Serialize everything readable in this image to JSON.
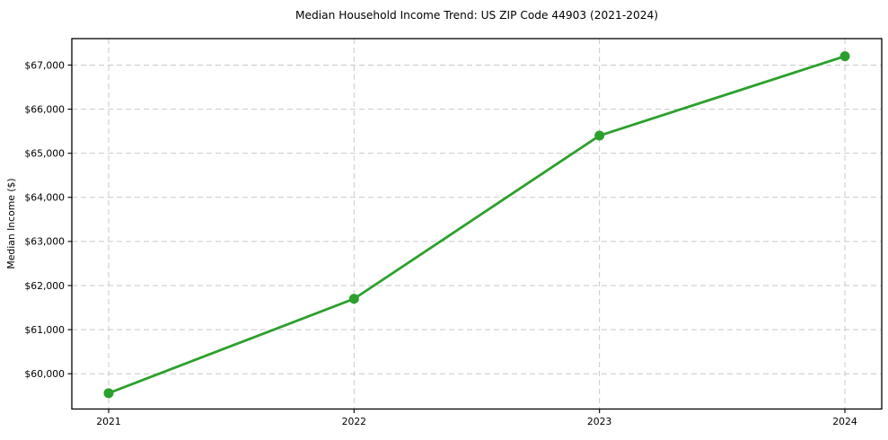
{
  "figure": {
    "background_color": "#ffffff"
  },
  "chart_data": {
    "type": "line",
    "title": "Median Household Income Trend: US ZIP Code 44903 (2021-2024)",
    "xlabel": "",
    "ylabel": "Median Income ($)",
    "x": [
      2021,
      2022,
      2023,
      2024
    ],
    "x_tick_labels": [
      "2021",
      "2022",
      "2023",
      "2024"
    ],
    "series": [
      {
        "name": "median-household-income",
        "values": [
          59560,
          61700,
          65400,
          67200
        ],
        "color": "#2ca02c",
        "marker": "circle"
      }
    ],
    "y_ticks": [
      60000,
      61000,
      62000,
      63000,
      64000,
      65000,
      66000,
      67000
    ],
    "y_tick_labels": [
      "$60,000",
      "$61,000",
      "$62,000",
      "$63,000",
      "$64,000",
      "$65,000",
      "$66,000",
      "$67,000"
    ],
    "ylim": [
      59200,
      67600
    ],
    "xlim": [
      2020.85,
      2024.15
    ],
    "grid": "dashed-both-axes",
    "grid_color": "#c9c9c9",
    "spine_color": "#000000",
    "tick_color": "#000000",
    "text_color": "#000000",
    "legend": "none"
  }
}
